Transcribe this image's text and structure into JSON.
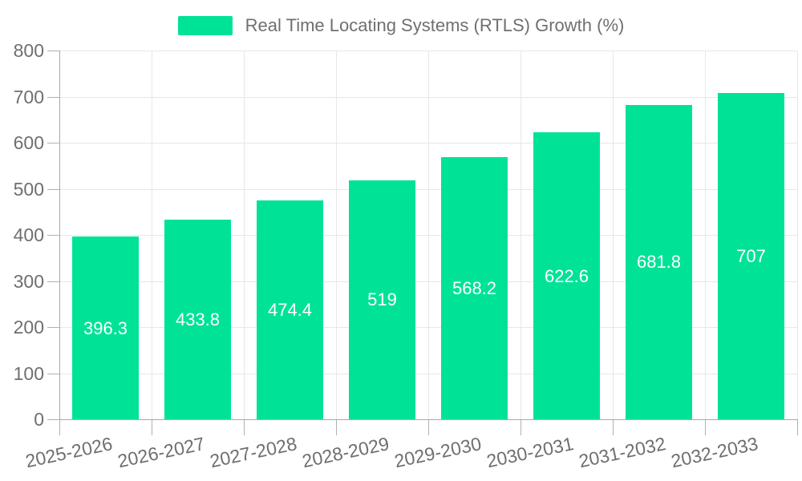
{
  "chart_data": {
    "type": "bar",
    "title": "Real Time Locating Systems (RTLS) Growth (%)",
    "legend": {
      "label": "Real Time Locating Systems (RTLS) Growth (%)",
      "position": "top-center"
    },
    "categories": [
      "2025-2026",
      "2026-2027",
      "2027-2028",
      "2028-2029",
      "2029-2030",
      "2030-2031",
      "2031-2032",
      "2032-2033"
    ],
    "values": [
      396.3,
      433.8,
      474.4,
      519,
      568.2,
      622.6,
      681.8,
      707
    ],
    "xlabel": "",
    "ylabel": "",
    "ylim": [
      0,
      800
    ],
    "yticks": [
      0,
      100,
      200,
      300,
      400,
      500,
      600,
      700,
      800
    ],
    "grid": true,
    "legend_position": "top-center",
    "colors": {
      "bar": "#00E396",
      "value_label": "#ffffff",
      "axis_text": "#6f6f6f",
      "gridline": "#e7e7e7",
      "axis_line": "#a9a9a9"
    }
  }
}
